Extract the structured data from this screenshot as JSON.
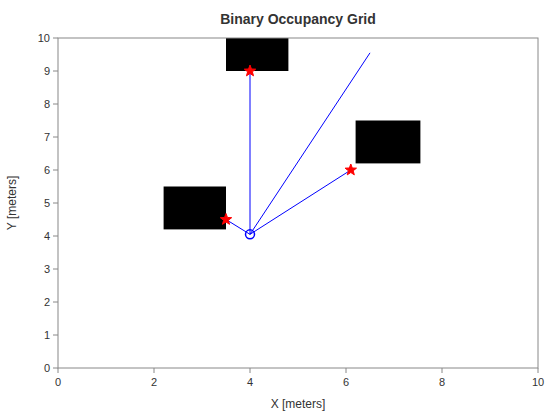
{
  "chart_data": {
    "type": "occupancy_grid",
    "title": "Binary Occupancy Grid",
    "xlabel": "X [meters]",
    "ylabel": "Y [meters]",
    "xlim": [
      0,
      10
    ],
    "ylim": [
      0,
      10
    ],
    "xticks": [
      0,
      2,
      4,
      6,
      8,
      10
    ],
    "yticks": [
      0,
      1,
      2,
      3,
      4,
      5,
      6,
      7,
      8,
      9,
      10
    ],
    "grid": false,
    "obstacles": {
      "x": [
        2.2,
        3.5,
        6.2
      ],
      "y": [
        4.2,
        9.0,
        6.2
      ],
      "w": [
        1.3,
        1.3,
        1.35
      ],
      "h": [
        1.3,
        1.0,
        1.3
      ],
      "color": "black"
    },
    "robot": {
      "x": 4.0,
      "y": 4.05,
      "color": "blue",
      "marker": "circle"
    },
    "hits": {
      "x": [
        3.5,
        4.0,
        6.1
      ],
      "y": [
        4.5,
        9.0,
        6.0
      ],
      "color": "red",
      "marker": "star"
    },
    "rays": {
      "x": [
        6.5
      ],
      "y": [
        9.55
      ],
      "color": "blue"
    }
  }
}
